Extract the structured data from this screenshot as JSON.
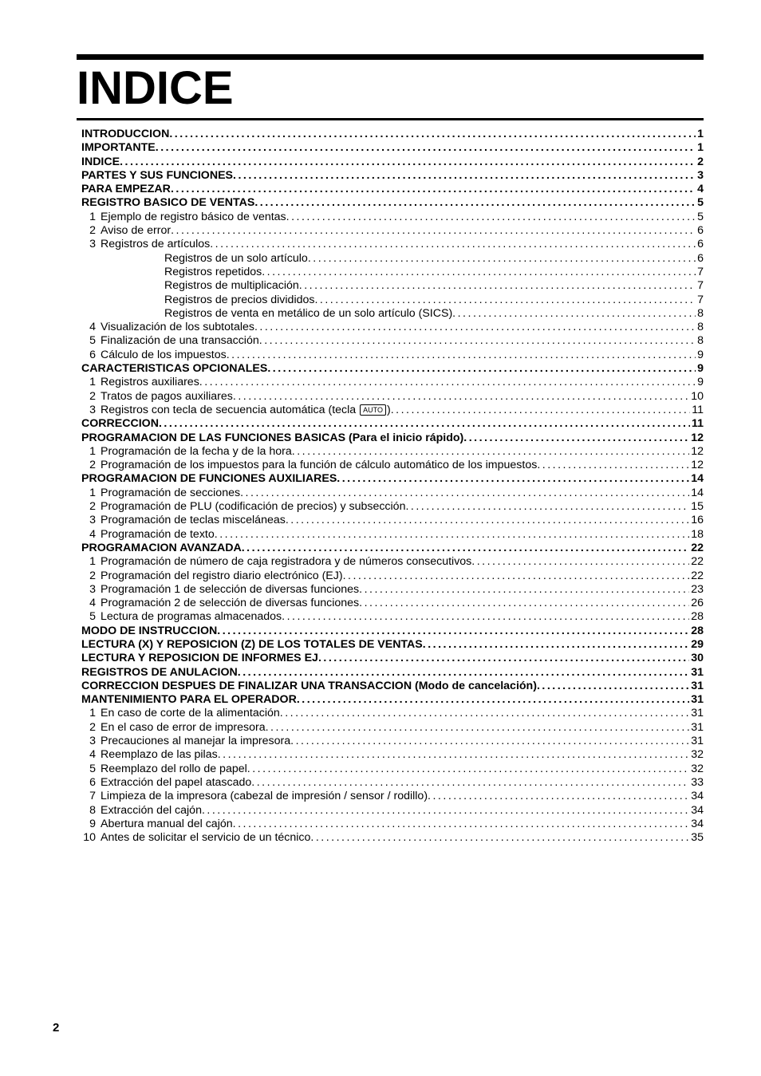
{
  "title": "INDICE",
  "page_number": "2",
  "auto_key_label": "AUTO",
  "toc": [
    {
      "lvl": 0,
      "bold": true,
      "num": "",
      "label": "INTRODUCCION",
      "page": "1"
    },
    {
      "lvl": 0,
      "bold": true,
      "num": "",
      "label": "IMPORTANTE",
      "page": "1"
    },
    {
      "lvl": 0,
      "bold": true,
      "num": "",
      "label": "INDICE ",
      "page": "2"
    },
    {
      "lvl": 0,
      "bold": true,
      "num": "",
      "label": "PARTES Y SUS FUNCIONES",
      "page": "3"
    },
    {
      "lvl": 0,
      "bold": true,
      "num": "",
      "label": "PARA EMPEZAR",
      "page": "4"
    },
    {
      "lvl": 0,
      "bold": true,
      "num": "",
      "label": "REGISTRO BASICO DE VENTAS",
      "page": "5"
    },
    {
      "lvl": 1,
      "bold": false,
      "num": "1",
      "label": "Ejemplo de registro básico de ventas ",
      "page": "5"
    },
    {
      "lvl": 1,
      "bold": false,
      "num": "2",
      "label": "Aviso de error ",
      "page": "6"
    },
    {
      "lvl": 1,
      "bold": false,
      "num": "3",
      "label": "Registros de artículos ",
      "page": "6"
    },
    {
      "lvl": 2,
      "bold": false,
      "num": "",
      "label": "Registros de un solo artículo ",
      "page": "6"
    },
    {
      "lvl": 2,
      "bold": false,
      "num": "",
      "label": "Registros repetidos ",
      "page": "7"
    },
    {
      "lvl": 2,
      "bold": false,
      "num": "",
      "label": "Registros de multiplicación",
      "page": "7"
    },
    {
      "lvl": 2,
      "bold": false,
      "num": "",
      "label": "Registros de precios divididos ",
      "page": "7"
    },
    {
      "lvl": 2,
      "bold": false,
      "num": "",
      "label": "Registros de venta en metálico de un solo artículo (SICS) ",
      "page": "8"
    },
    {
      "lvl": 1,
      "bold": false,
      "num": "4",
      "label": "Visualización de los subtotales ",
      "page": "8"
    },
    {
      "lvl": 1,
      "bold": false,
      "num": "5",
      "label": "Finalización de una transacción",
      "page": "8"
    },
    {
      "lvl": 1,
      "bold": false,
      "num": "6",
      "label": "Cálculo de los impuestos ",
      "page": "9"
    },
    {
      "lvl": 0,
      "bold": true,
      "num": "",
      "label": "CARACTERISTICAS OPCIONALES",
      "page": "9"
    },
    {
      "lvl": 1,
      "bold": false,
      "num": "1",
      "label": "Registros auxiliares",
      "page": "9"
    },
    {
      "lvl": 1,
      "bold": false,
      "num": "2",
      "label": "Tratos de pagos auxiliares ",
      "page": "10"
    },
    {
      "lvl": 1,
      "bold": false,
      "num": "3",
      "label": "Registros con tecla de secuencia automática (tecla {{AUTO}})",
      "page": "11"
    },
    {
      "lvl": 0,
      "bold": true,
      "num": "",
      "label": "CORRECCION",
      "page": "11"
    },
    {
      "lvl": 0,
      "bold": true,
      "num": "",
      "label": "PROGRAMACION DE LAS FUNCIONES BASICAS (Para el inicio rápido)",
      "page": "12"
    },
    {
      "lvl": 1,
      "bold": false,
      "num": "1",
      "label": "Programación de la fecha y de la hora",
      "page": "12"
    },
    {
      "lvl": 1,
      "bold": false,
      "num": "2",
      "label": "Programación de los impuestos para la función de cálculo automático de los impuestos",
      "page": "12"
    },
    {
      "lvl": 0,
      "bold": true,
      "num": "",
      "label": "PROGRAMACION DE FUNCIONES AUXILIARES",
      "page": "14"
    },
    {
      "lvl": 1,
      "bold": false,
      "num": "1",
      "label": "Programación de secciones",
      "page": "14"
    },
    {
      "lvl": 1,
      "bold": false,
      "num": "2",
      "label": "Programación de PLU (codificación de precios) y subsección ",
      "page": "15"
    },
    {
      "lvl": 1,
      "bold": false,
      "num": "3",
      "label": "Programación de teclas misceláneas",
      "page": "16"
    },
    {
      "lvl": 1,
      "bold": false,
      "num": "4",
      "label": "Programación de texto ",
      "page": "18"
    },
    {
      "lvl": 0,
      "bold": true,
      "num": "",
      "label": "PROGRAMACION AVANZADA",
      "page": "22"
    },
    {
      "lvl": 1,
      "bold": false,
      "num": "1",
      "label": "Programación de número de caja registradora y de números consecutivos ",
      "page": "22"
    },
    {
      "lvl": 1,
      "bold": false,
      "num": "2",
      "label": "Programación del registro diario electrónico (EJ) ",
      "page": "22"
    },
    {
      "lvl": 1,
      "bold": false,
      "num": "3",
      "label": "Programación 1 de selección de diversas funciones ",
      "page": "23"
    },
    {
      "lvl": 1,
      "bold": false,
      "num": "4",
      "label": "Programación 2 de selección de diversas funciones ",
      "page": "26"
    },
    {
      "lvl": 1,
      "bold": false,
      "num": "5",
      "label": "Lectura de programas almacenados",
      "page": "28"
    },
    {
      "lvl": 0,
      "bold": true,
      "num": "",
      "label": "MODO DE INSTRUCCION ",
      "page": "28"
    },
    {
      "lvl": 0,
      "bold": true,
      "num": "",
      "label": "LECTURA (X) Y REPOSICION (Z) DE LOS TOTALES DE VENTAS ",
      "page": "29"
    },
    {
      "lvl": 0,
      "bold": true,
      "num": "",
      "label": "LECTURA Y REPOSICION DE INFORMES EJ",
      "page": "30"
    },
    {
      "lvl": 0,
      "bold": true,
      "num": "",
      "label": "REGISTROS DE ANULACION",
      "page": "31"
    },
    {
      "lvl": 0,
      "bold": true,
      "num": "",
      "label": "CORRECCION DESPUES DE FINALIZAR UNA TRANSACCION (Modo de cancelación)",
      "page": "31"
    },
    {
      "lvl": 0,
      "bold": true,
      "num": "",
      "label": "MANTENIMIENTO PARA EL OPERADOR",
      "page": "31"
    },
    {
      "lvl": 1,
      "bold": false,
      "num": "1",
      "label": "En caso de corte de la alimentación ",
      "page": "31"
    },
    {
      "lvl": 1,
      "bold": false,
      "num": "2",
      "label": "En el caso de error de impresora ",
      "page": "31"
    },
    {
      "lvl": 1,
      "bold": false,
      "num": "3",
      "label": "Precauciones al manejar la impresora",
      "page": "31"
    },
    {
      "lvl": 1,
      "bold": false,
      "num": "4",
      "label": "Reemplazo de las pilas ",
      "page": "32"
    },
    {
      "lvl": 1,
      "bold": false,
      "num": "5",
      "label": "Reemplazo del rollo de papel",
      "page": "32"
    },
    {
      "lvl": 1,
      "bold": false,
      "num": "6",
      "label": "Extracción del papel atascado ",
      "page": "33"
    },
    {
      "lvl": 1,
      "bold": false,
      "num": "7",
      "label": "Limpieza de la impresora (cabezal de impresión / sensor / rodillo) ",
      "page": "34"
    },
    {
      "lvl": 1,
      "bold": false,
      "num": "8",
      "label": "Extracción del cajón ",
      "page": "34"
    },
    {
      "lvl": 1,
      "bold": false,
      "num": "9",
      "label": "Abertura manual del cajón ",
      "page": "34"
    },
    {
      "lvl": 1,
      "bold": false,
      "num": "10",
      "label": "Antes de solicitar el servicio de un técnico",
      "page": "35"
    }
  ]
}
